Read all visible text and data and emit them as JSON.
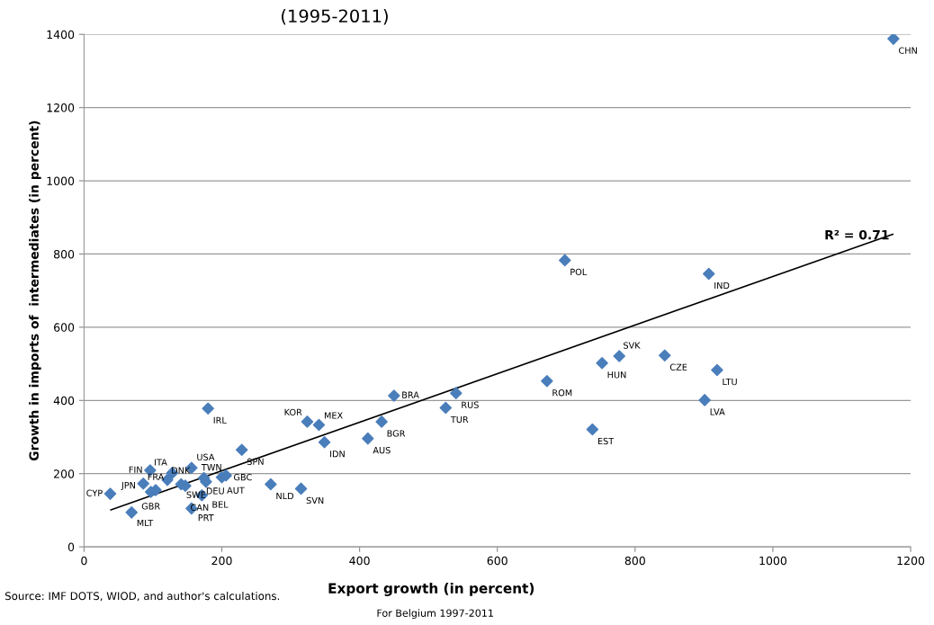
{
  "chart_data": {
    "type": "scatter",
    "title": "(1995-2011)",
    "subtitle": "For Belgium 1997-2011",
    "xlabel": "Export growth (in percent)",
    "ylabel": "Growth in imports of  intermediates (in percent)",
    "xlim": [
      0,
      1200
    ],
    "xticks": [
      0,
      200,
      400,
      600,
      800,
      1000,
      1200
    ],
    "ylim": [
      0,
      1400
    ],
    "yticks": [
      0,
      200,
      400,
      600,
      800,
      1000,
      1200,
      1400
    ],
    "grid": "y",
    "series": [
      {
        "marker": "diamond",
        "color": "#4a7ebb",
        "x": [
          1175,
          698,
          907,
          777,
          752,
          843,
          919,
          672,
          901,
          738,
          450,
          540,
          525,
          432,
          412,
          324,
          341,
          349,
          271,
          315,
          180,
          229,
          156,
          128,
          96,
          86,
          121,
          141,
          147,
          97,
          104,
          174,
          177,
          200,
          206,
          171,
          156,
          38,
          69
        ],
        "values": [
          1388,
          783,
          746,
          521,
          502,
          523,
          483,
          453,
          401,
          321,
          413,
          420,
          380,
          342,
          296,
          342,
          333,
          286,
          171,
          159,
          378,
          265,
          216,
          202,
          209,
          173,
          183,
          171,
          167,
          150,
          155,
          188,
          178,
          190,
          195,
          141,
          105,
          145,
          94
        ]
      },
      {
        "type": "line",
        "color": "#000000",
        "x": [
          39,
          1174
        ],
        "values": [
          101,
          854
        ]
      }
    ],
    "annotations": [
      "R² = 0.71",
      "Source: IMF DOTS, WIOD, and author's calculations.",
      {
        "text": "CHN",
        "x": 1175,
        "y": 1388
      },
      {
        "text": "POL",
        "x": 698,
        "y": 783
      },
      {
        "text": "IND",
        "x": 907,
        "y": 746
      },
      {
        "text": "SVK",
        "x": 777,
        "y": 521
      },
      {
        "text": "HUN",
        "x": 752,
        "y": 502
      },
      {
        "text": "CZE",
        "x": 843,
        "y": 523
      },
      {
        "text": "LTU",
        "x": 919,
        "y": 483
      },
      {
        "text": "ROM",
        "x": 672,
        "y": 453
      },
      {
        "text": "LVA",
        "x": 901,
        "y": 401
      },
      {
        "text": "EST",
        "x": 738,
        "y": 321
      },
      {
        "text": "BRA",
        "x": 450,
        "y": 413
      },
      {
        "text": "RUS",
        "x": 540,
        "y": 420
      },
      {
        "text": "TUR",
        "x": 525,
        "y": 380
      },
      {
        "text": "BGR",
        "x": 432,
        "y": 342
      },
      {
        "text": "AUS",
        "x": 412,
        "y": 296
      },
      {
        "text": "KOR",
        "x": 324,
        "y": 342
      },
      {
        "text": "MEX",
        "x": 341,
        "y": 333
      },
      {
        "text": "IDN",
        "x": 349,
        "y": 286
      },
      {
        "text": "NLD",
        "x": 271,
        "y": 171
      },
      {
        "text": "SVN",
        "x": 315,
        "y": 159
      },
      {
        "text": "IRL",
        "x": 180,
        "y": 378
      },
      {
        "text": "SPN",
        "x": 229,
        "y": 265
      },
      {
        "text": "USA",
        "x": 156,
        "y": 216
      },
      {
        "text": "ITA",
        "x": 128,
        "y": 202
      },
      {
        "text": "FIN",
        "x": 96,
        "y": 209
      },
      {
        "text": "JPN",
        "x": 86,
        "y": 173
      },
      {
        "text": "DNK",
        "x": 121,
        "y": 183
      },
      {
        "text": "SWE",
        "x": 141,
        "y": 171
      },
      {
        "text": "CAN",
        "x": 147,
        "y": 167
      },
      {
        "text": "GBR",
        "x": 97,
        "y": 150
      },
      {
        "text": "FRA",
        "x": 104,
        "y": 155
      },
      {
        "text": "TWN",
        "x": 174,
        "y": 188
      },
      {
        "text": "DEU",
        "x": 177,
        "y": 178
      },
      {
        "text": "AUT",
        "x": 200,
        "y": 190
      },
      {
        "text": "GBC",
        "x": 206,
        "y": 195
      },
      {
        "text": "BEL",
        "x": 171,
        "y": 141
      },
      {
        "text": "PRT",
        "x": 156,
        "y": 105
      },
      {
        "text": "CYP",
        "x": 38,
        "y": 145
      },
      {
        "text": "MLT",
        "x": 69,
        "y": 94
      }
    ]
  }
}
